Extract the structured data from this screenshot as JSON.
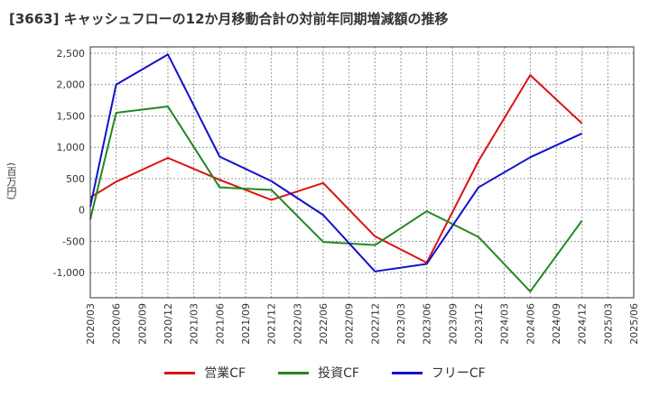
{
  "title": "[3663]  キャッシュフローの12か月移動合計の対前年同期増減額の推移",
  "chart_data": {
    "type": "line",
    "title": "[3663]  キャッシュフローの12か月移動合計の対前年同期増減額の推移",
    "xlabel": "",
    "ylabel": "(百万円)",
    "categories": [
      "2020/03",
      "2020/06",
      "2020/09",
      "2020/12",
      "2021/03",
      "2021/06",
      "2021/09",
      "2021/12",
      "2022/03",
      "2022/06",
      "2022/09",
      "2022/12",
      "2023/03",
      "2023/06",
      "2023/09",
      "2023/12",
      "2024/03",
      "2024/06",
      "2024/09",
      "2024/12",
      "2025/03",
      "2025/06"
    ],
    "ylim": [
      -1400,
      2600
    ],
    "yticks": [
      -1000,
      -500,
      0,
      500,
      1000,
      1500,
      2000,
      2500
    ],
    "ytick_labels": [
      "-1,000",
      "-500",
      "0",
      "500",
      "1,000",
      "1,500",
      "2,000",
      "2,500"
    ],
    "grid": true,
    "legend_position": "bottom",
    "series": [
      {
        "name": "営業CF",
        "color": "#dd1111",
        "values": [
          200,
          450,
          null,
          830,
          null,
          480,
          null,
          160,
          null,
          430,
          null,
          -420,
          null,
          -840,
          null,
          780,
          null,
          2150,
          null,
          1380,
          null,
          null
        ]
      },
      {
        "name": "投資CF",
        "color": "#228822",
        "values": [
          -150,
          1550,
          null,
          1650,
          null,
          360,
          null,
          320,
          null,
          -510,
          null,
          -560,
          null,
          -20,
          null,
          -430,
          null,
          -1300,
          null,
          -170,
          null,
          null
        ]
      },
      {
        "name": "フリーCF",
        "color": "#1111cc",
        "values": [
          50,
          2000,
          null,
          2480,
          null,
          850,
          null,
          460,
          null,
          -80,
          null,
          -980,
          null,
          -860,
          null,
          360,
          null,
          840,
          null,
          1220,
          null,
          null
        ]
      }
    ]
  }
}
